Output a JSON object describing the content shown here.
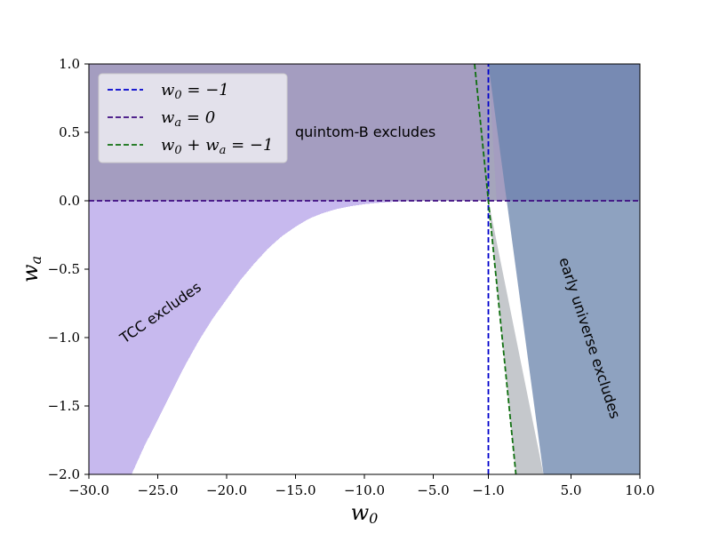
{
  "chart_data": {
    "type": "area",
    "title": "",
    "xlabel": "w0",
    "ylabel": "wa",
    "xlim": [
      -30,
      10
    ],
    "ylim": [
      -2,
      1
    ],
    "xticks": [
      -30,
      -25,
      -20,
      -15,
      -10,
      -5,
      -1,
      5,
      10
    ],
    "xtick_labels": [
      "−30.0",
      "−25.0",
      "−20.0",
      "−15.0",
      "−10.0",
      "−5.0",
      "−1.0",
      "5.0",
      "10.0"
    ],
    "yticks": [
      1.0,
      0.5,
      0.0,
      -0.5,
      -1.0,
      -1.5,
      -2.0
    ],
    "ytick_labels": [
      "1.0",
      "0.5",
      "0.0",
      "−0.5",
      "−1.0",
      "−1.5",
      "−2.0"
    ],
    "grid": false,
    "legend_position": "top-left",
    "regions": [
      {
        "label": "quintom-B excludes",
        "color": "#675b96",
        "x_range": [
          -30,
          10
        ],
        "y_range": [
          0,
          1
        ]
      },
      {
        "label": "TCC excludes",
        "color": "#c7b9ee",
        "boundary_w0": [
          -26.9,
          -26.0,
          -25.0,
          -24.0,
          -23.0,
          -22.0,
          -21.0,
          -20.0,
          -19.0,
          -18.0,
          -17.0,
          -16.0,
          -15.0,
          -14.0,
          -13.0,
          -12.0,
          -11.0,
          -10.0,
          -9.0,
          -8.0,
          -7.0,
          -6.0,
          -5.0
        ],
        "boundary_wa": [
          -2.0,
          -1.8,
          -1.6,
          -1.4,
          -1.2,
          -1.02,
          -0.86,
          -0.72,
          -0.58,
          -0.46,
          -0.35,
          -0.26,
          -0.19,
          -0.13,
          -0.09,
          -0.06,
          -0.04,
          -0.025,
          -0.015,
          -0.008,
          -0.004,
          -0.002,
          0.0
        ]
      },
      {
        "label": "early universe excludes",
        "color": "#8ea2c0",
        "boundary_w0": [
          -1.0,
          3.0
        ],
        "boundary_wa": [
          1.0,
          -2.0
        ]
      },
      {
        "label": "",
        "color": "#bfc2c7",
        "boundary_w0": [
          -1.0,
          1.0,
          3.0
        ],
        "boundary_wa": [
          0.0,
          0.0,
          -2.0
        ]
      }
    ],
    "series": [
      {
        "name": "$w_0=-1$",
        "legend_parts": [
          "w",
          "0",
          " = −1"
        ],
        "color": "#0000cc",
        "style": "dashed",
        "x": [
          -1,
          -1
        ],
        "y": [
          -2,
          1
        ]
      },
      {
        "name": "$w_a=0$",
        "legend_parts": [
          "w",
          "a",
          " = 0"
        ],
        "color": "#3d0a80",
        "style": "dashed",
        "x": [
          -30,
          10
        ],
        "y": [
          0,
          0
        ]
      },
      {
        "name": "$w_0+w_a=-1$",
        "legend_parts": [
          "w",
          "0",
          " + w",
          "a",
          " = −1"
        ],
        "color": "#107010",
        "style": "dashed",
        "x": [
          -2,
          1
        ],
        "y": [
          1,
          -2
        ]
      }
    ]
  }
}
